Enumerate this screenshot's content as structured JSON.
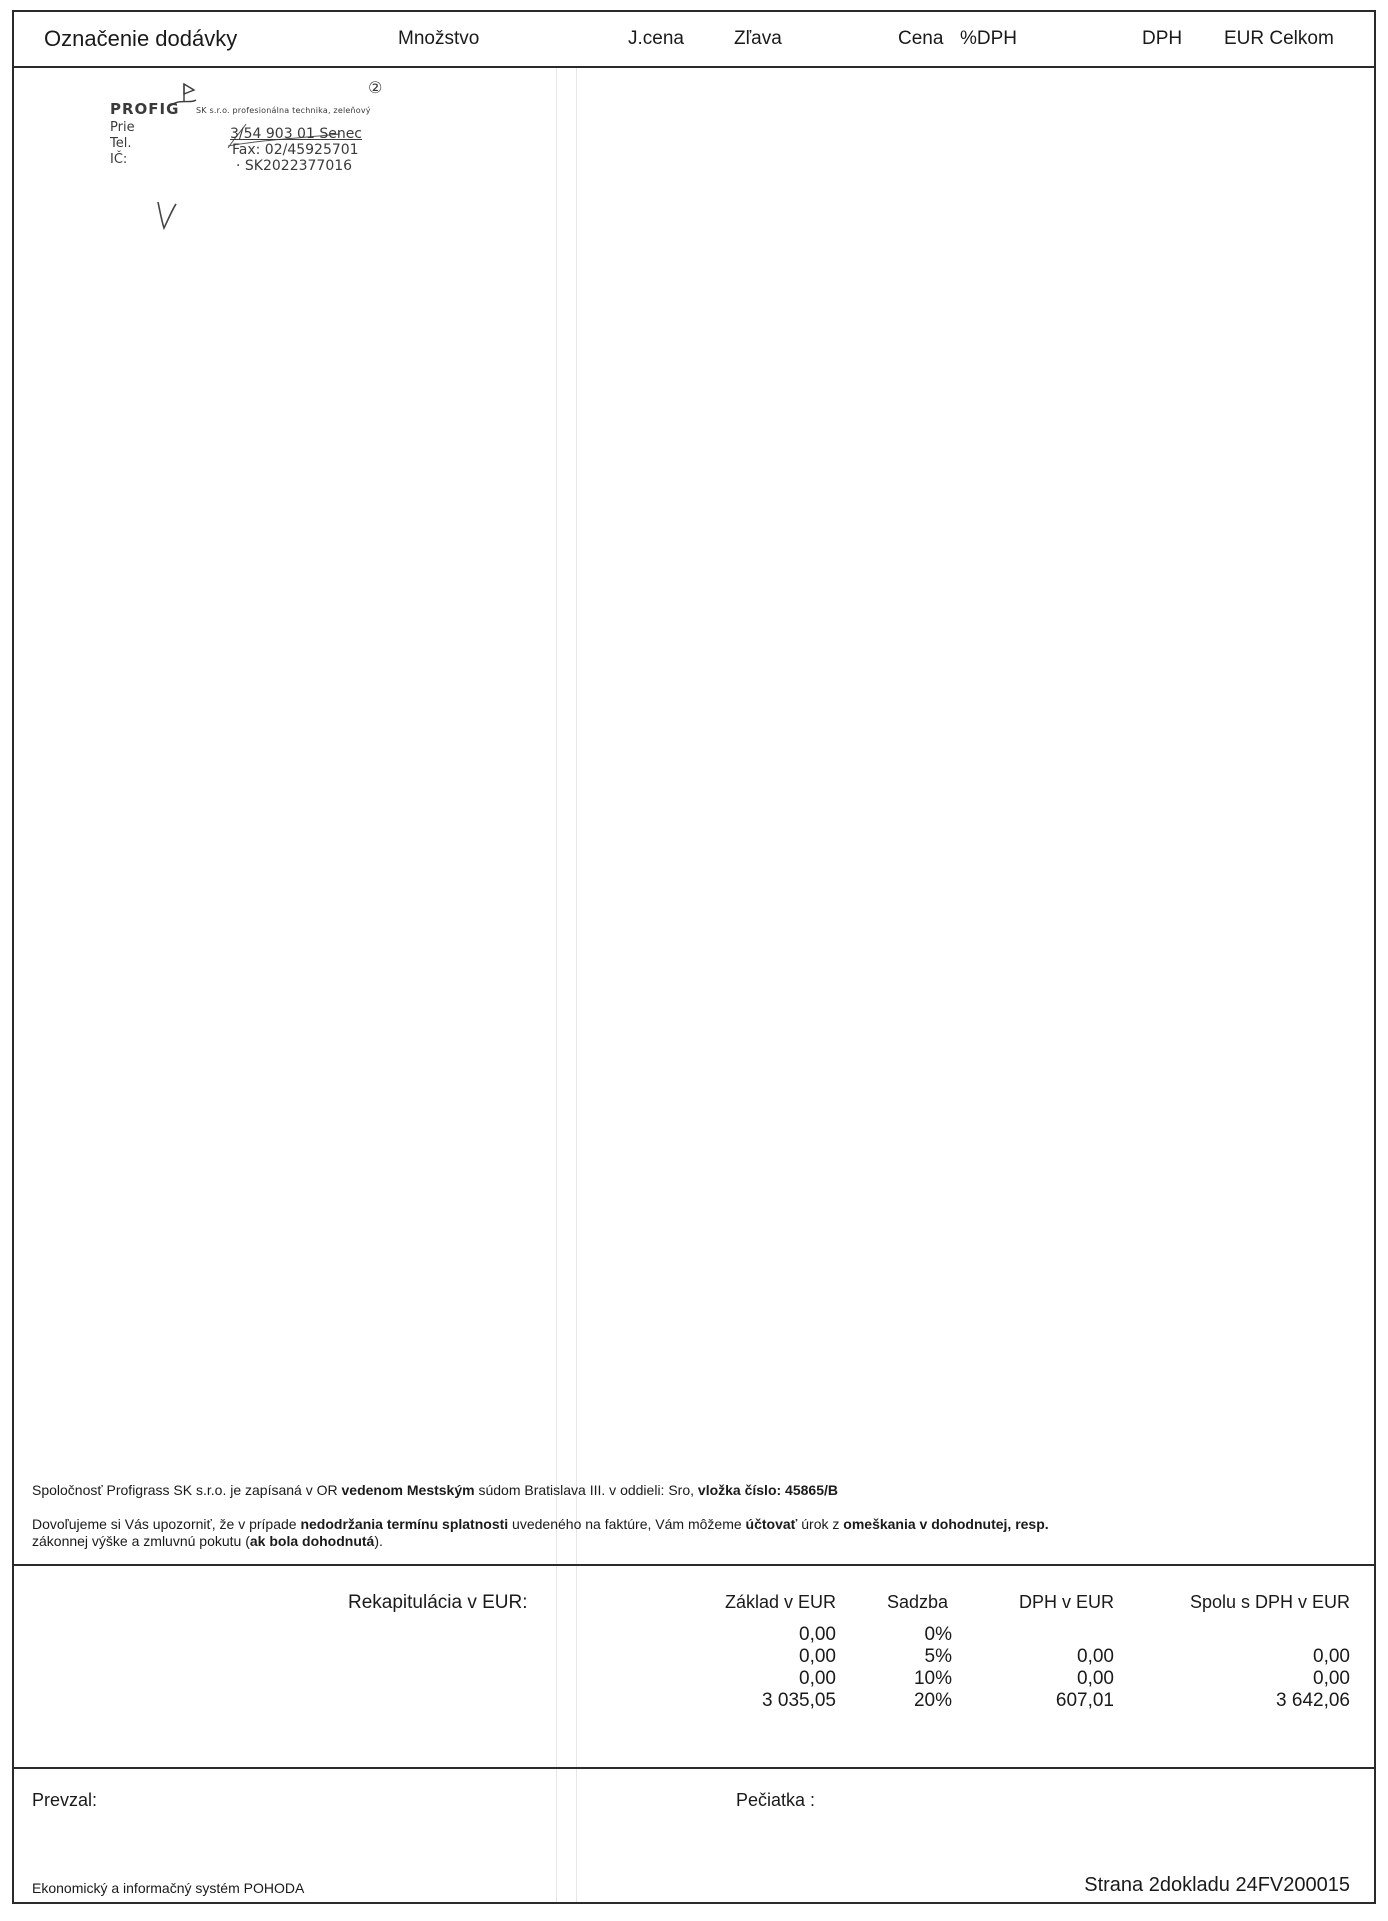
{
  "table_header": {
    "description": "Označenie dodávky",
    "quantity": "Množstvo",
    "unit_price": "J.cena",
    "discount": "Zľava",
    "price": "Cena",
    "vat_percent": "%DPH",
    "vat": "DPH",
    "total": "EUR Celkom"
  },
  "stamp": {
    "brand": "PROFIG",
    "company_small": "SK s.r.o. profesionálna technika, zeleňový",
    "line_pre": "Prie",
    "line_tel": "Tel.",
    "line_ico": "IČ:",
    "address": "3/54 903 01 Senec",
    "fax": "Fax: 02/45925701",
    "vat_id": "· SK2022377016",
    "number_mark": "②"
  },
  "notes": {
    "registration_pre": "Spoločnosť Profigrass SK s.r.o. je zapísaná v OR ",
    "registration_bold1": "vedenom Mestským",
    "registration_mid": " súdom Bratislava III. v oddieli: Sro, ",
    "registration_bold2": "vložka číslo: 45865/B",
    "warning_line1_pre": "Dovoľujeme si Vás upozorniť, že v prípade ",
    "warning_line1_bold1": "nedodržania termínu",
    "warning_line1_bold2": " splatnosti",
    "warning_line1_mid": " uvedeného na faktúre, Vám môžeme ",
    "warning_line1_bold3": "účtovať",
    "warning_line1_post": " úrok z ",
    "warning_line1_bold4": "omeškania v dohodnutej, resp.",
    "warning_line2_pre": "zákonnej výške a zmluvnú pokutu (",
    "warning_line2_bold": "ak bola dohodnutá",
    "warning_line2_post": ")."
  },
  "recap": {
    "title": "Rekapitulácia v EUR:",
    "headers": {
      "base": "Základ v EUR",
      "rate": "Sadzba",
      "vat": "DPH v EUR",
      "total": "Spolu s DPH v EUR"
    },
    "rows": [
      {
        "base": "0,00",
        "rate": "0%",
        "vat": "",
        "total": ""
      },
      {
        "base": "0,00",
        "rate": "5%",
        "vat": "0,00",
        "total": "0,00"
      },
      {
        "base": "0,00",
        "rate": "10%",
        "vat": "0,00",
        "total": "0,00"
      },
      {
        "base": "3 035,05",
        "rate": "20%",
        "vat": "607,01",
        "total": "3 642,06"
      }
    ]
  },
  "sign": {
    "received": "Prevzal:",
    "stamp": "Pečiatka :"
  },
  "footer": {
    "system": "Ekonomický a informačný systém POHODA",
    "page": "Strana 2dokladu 24FV200015"
  },
  "colors": {
    "ink": "#1a1a1a",
    "stamp": "#3a3a3a",
    "frame": "#2a2a2a"
  }
}
